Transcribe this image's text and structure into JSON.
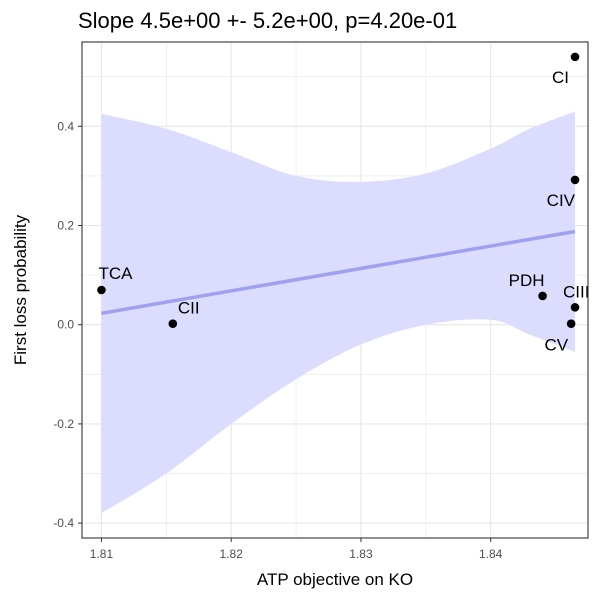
{
  "chart_data": {
    "type": "scatter",
    "title": "Slope 4.5e+00 +- 5.2e+00, p=4.20e-01",
    "xlabel": "ATP objective on KO",
    "ylabel": "First loss probability",
    "xlim": [
      1.8085,
      1.8475
    ],
    "ylim": [
      -0.43,
      0.57
    ],
    "x_ticks": [
      1.81,
      1.82,
      1.83,
      1.84
    ],
    "x_tick_labels": [
      "1.81",
      "1.82",
      "1.83",
      "1.84"
    ],
    "y_ticks": [
      -0.4,
      -0.2,
      0.0,
      0.2,
      0.4
    ],
    "y_tick_labels": [
      "-0.4",
      "-0.2",
      "0.0",
      "0.2",
      "0.4"
    ],
    "grid": true,
    "points": [
      {
        "label": "TCA",
        "x": 1.81,
        "y": 0.07
      },
      {
        "label": "CII",
        "x": 1.8155,
        "y": 0.002
      },
      {
        "label": "PDH",
        "x": 1.844,
        "y": 0.058
      },
      {
        "label": "CIII",
        "x": 1.8465,
        "y": 0.035
      },
      {
        "label": "CV",
        "x": 1.8462,
        "y": 0.002
      },
      {
        "label": "CIV",
        "x": 1.8465,
        "y": 0.292
      },
      {
        "label": "CI",
        "x": 1.8465,
        "y": 0.54
      }
    ],
    "fit_line": {
      "x": [
        1.81,
        1.8465
      ],
      "y": [
        0.023,
        0.188
      ]
    },
    "confidence_band": {
      "x": [
        1.81,
        1.815,
        1.82,
        1.825,
        1.83,
        1.835,
        1.84,
        1.843,
        1.8465
      ],
      "upper": [
        0.425,
        0.395,
        0.348,
        0.3,
        0.288,
        0.305,
        0.355,
        0.395,
        0.43
      ],
      "lower": [
        -0.38,
        -0.3,
        -0.2,
        -0.11,
        -0.04,
        0.0,
        0.01,
        -0.02,
        -0.055
      ]
    },
    "colors": {
      "band": "#dcdcff",
      "line": "#a0a0f0",
      "point": "#000000",
      "grid": "#e6e6e6",
      "panel_border": "#333333"
    }
  }
}
